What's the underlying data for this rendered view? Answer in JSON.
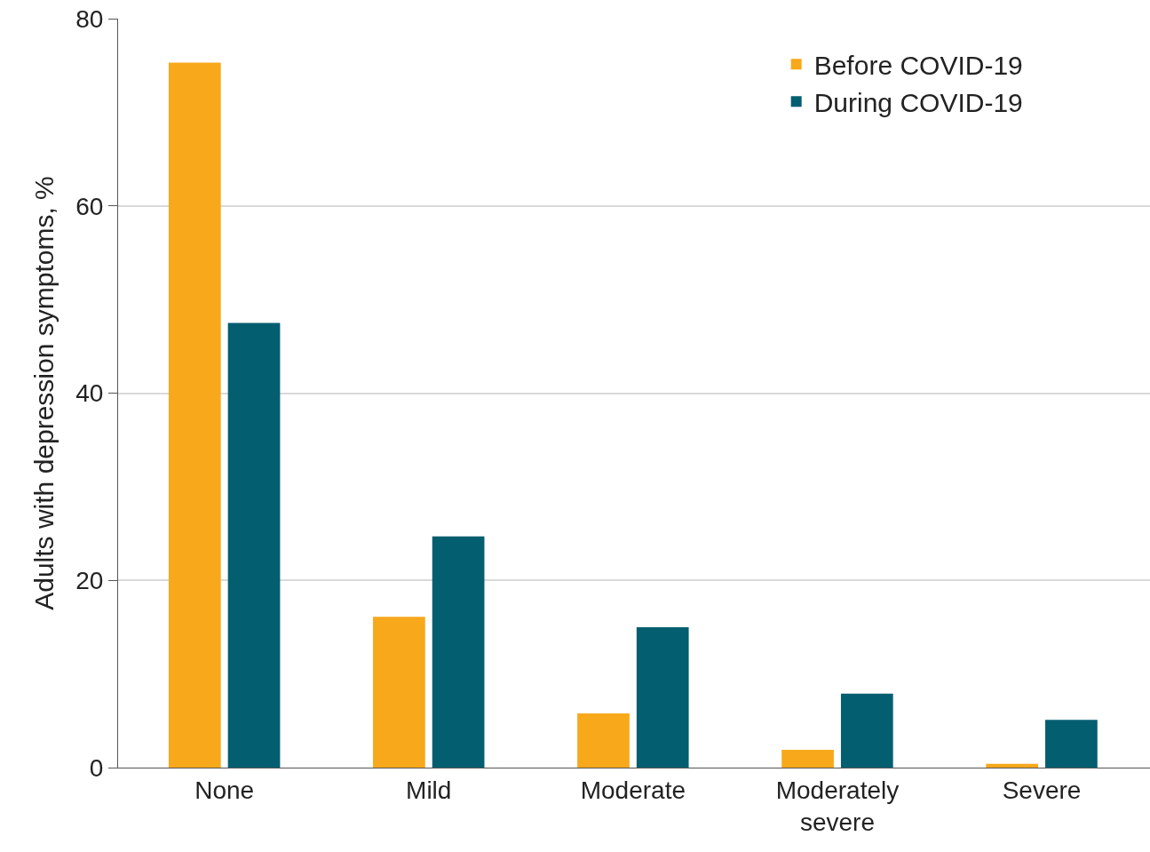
{
  "chart_data": {
    "type": "bar",
    "ylabel": "Adults with depression symptoms, %",
    "categories": [
      "None",
      "Mild",
      "Moderate",
      "Moderately severe",
      "Severe"
    ],
    "series": [
      {
        "name": "Before COVID-19",
        "color": "#f8a81b",
        "values": [
          75.3,
          16.1,
          5.8,
          1.9,
          0.4
        ]
      },
      {
        "name": "During COVID-19",
        "color": "#035e70",
        "values": [
          47.5,
          24.7,
          15.0,
          7.9,
          5.1
        ]
      }
    ],
    "ylim": [
      0,
      80
    ],
    "yticks": [
      0,
      20,
      40,
      60,
      80
    ],
    "grid": "y",
    "legend": "top right"
  }
}
